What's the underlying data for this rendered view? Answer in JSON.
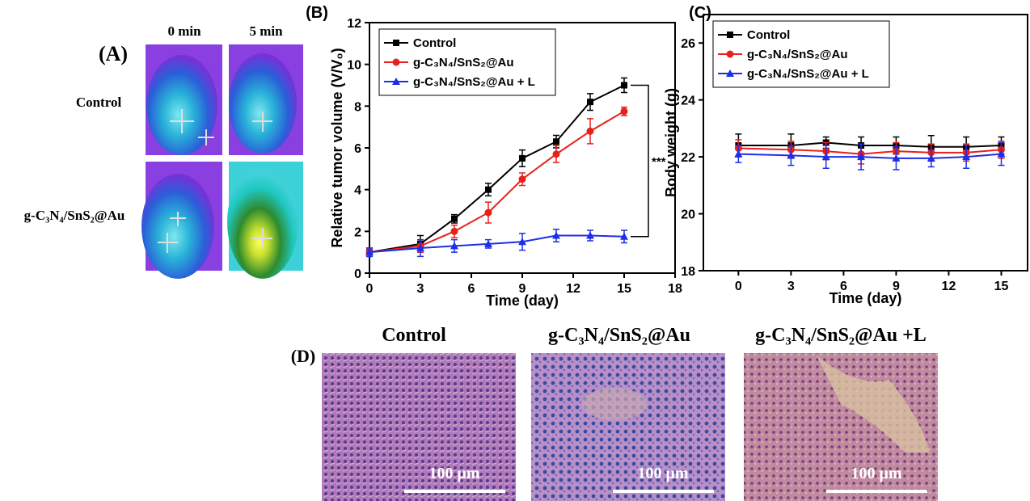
{
  "panels": {
    "a": {
      "label": "(A)",
      "columns": [
        "0 min",
        "5 min"
      ],
      "rows": [
        "Control",
        "g-C₃N₄/SnS₂@Au"
      ]
    },
    "b_label": "(B)",
    "c_label": "(C)",
    "d": {
      "label": "(D)",
      "titles": [
        "Control",
        "g-C₃N₄/SnS₂@Au",
        "g-C₃N₄/SnS₂@Au +L"
      ],
      "scale_bars": [
        "100 μm",
        "100 μm",
        "100 μm"
      ]
    }
  },
  "chart_data": [
    {
      "type": "line",
      "x_label": "Time (day)",
      "y_label": "Relative tumor volume (V/V₀)",
      "legend": "upper left",
      "x": [
        0,
        3,
        5,
        7,
        9,
        11,
        13,
        15
      ],
      "xlim": [
        0,
        18
      ],
      "xticks": [
        0,
        3,
        6,
        9,
        12,
        15,
        18
      ],
      "ylim": [
        0,
        12
      ],
      "yticks": [
        0,
        2,
        4,
        6,
        8,
        10,
        12
      ],
      "series": [
        {
          "name": "Control",
          "color": "#000000",
          "marker": "square",
          "values": [
            1.0,
            1.4,
            2.6,
            4.0,
            5.5,
            6.3,
            8.2,
            9.0
          ],
          "errors": [
            0.2,
            0.4,
            0.2,
            0.3,
            0.4,
            0.3,
            0.4,
            0.35
          ]
        },
        {
          "name": "g-C₃N₄/SnS₂@Au",
          "color": "#e8201c",
          "marker": "circle",
          "values": [
            1.0,
            1.3,
            2.0,
            2.9,
            4.5,
            5.7,
            6.8,
            7.75
          ],
          "errors": [
            0.2,
            0.3,
            0.3,
            0.5,
            0.3,
            0.4,
            0.6,
            0.2
          ]
        },
        {
          "name": "g-C₃N₄/SnS₂@Au + L",
          "color": "#1d2ee8",
          "marker": "triangle",
          "values": [
            1.0,
            1.2,
            1.3,
            1.4,
            1.5,
            1.8,
            1.8,
            1.75
          ],
          "errors": [
            0.2,
            0.4,
            0.3,
            0.2,
            0.4,
            0.3,
            0.25,
            0.3
          ]
        }
      ],
      "annotation": "***"
    },
    {
      "type": "line",
      "x_label": "Time (day)",
      "y_label": "Body weight (g)",
      "legend": "upper left",
      "x": [
        0,
        3,
        5,
        7,
        9,
        11,
        13,
        15
      ],
      "xlim": [
        -2,
        16.5
      ],
      "xticks": [
        0,
        3,
        6,
        9,
        12,
        15
      ],
      "ylim": [
        18,
        27
      ],
      "yticks": [
        18,
        20,
        22,
        24,
        26
      ],
      "series": [
        {
          "name": "Control",
          "color": "#000000",
          "marker": "square",
          "values": [
            22.4,
            22.4,
            22.5,
            22.4,
            22.4,
            22.35,
            22.35,
            22.4
          ],
          "errors": [
            0.4,
            0.4,
            0.2,
            0.3,
            0.3,
            0.4,
            0.35,
            0.3
          ]
        },
        {
          "name": "g-C₃N₄/SnS₂@Au",
          "color": "#e8201c",
          "marker": "circle",
          "values": [
            22.3,
            22.25,
            22.2,
            22.1,
            22.2,
            22.15,
            22.15,
            22.25
          ],
          "errors": [
            0.3,
            0.3,
            0.3,
            0.35,
            0.3,
            0.3,
            0.3,
            0.3
          ]
        },
        {
          "name": "g-C₃N₄/SnS₂@Au + L",
          "color": "#1d2ee8",
          "marker": "triangle",
          "values": [
            22.1,
            22.05,
            22.0,
            22.0,
            21.95,
            21.95,
            22.0,
            22.1
          ],
          "errors": [
            0.3,
            0.35,
            0.4,
            0.45,
            0.4,
            0.3,
            0.4,
            0.4
          ]
        }
      ]
    }
  ]
}
